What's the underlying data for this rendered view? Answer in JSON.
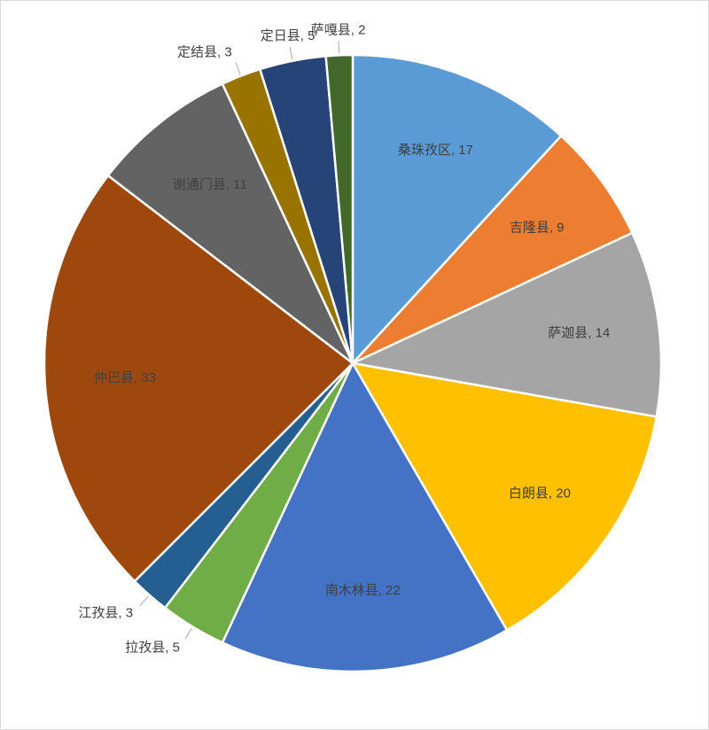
{
  "chart_data": {
    "type": "pie",
    "categories": [
      "桑珠孜区",
      "吉隆县",
      "萨迦县",
      "白朗县",
      "南木林县",
      "拉孜县",
      "江孜县",
      "仲巴县",
      "谢通门县",
      "定结县",
      "定日县",
      "萨嘎县"
    ],
    "values": [
      17,
      9,
      14,
      20,
      22,
      5,
      3,
      33,
      11,
      3,
      5,
      2
    ],
    "value_labels": [
      "桑珠孜区, 17",
      "吉隆县, 9",
      "萨迦县, 14",
      "白朗县, 20",
      "南木林县, 22",
      "拉孜县, 5",
      "江孜县, 3",
      "仲巴县, 33",
      "谢通门县, 11",
      "定结县, 3",
      "定日县, 5",
      "萨嘎县, 2"
    ],
    "colors": [
      "#5b9bd5",
      "#ed7d31",
      "#a5a5a5",
      "#ffc000",
      "#4472c4",
      "#70ad47",
      "#255e91",
      "#9e480e",
      "#636363",
      "#997300",
      "#264478",
      "#43682b"
    ]
  }
}
